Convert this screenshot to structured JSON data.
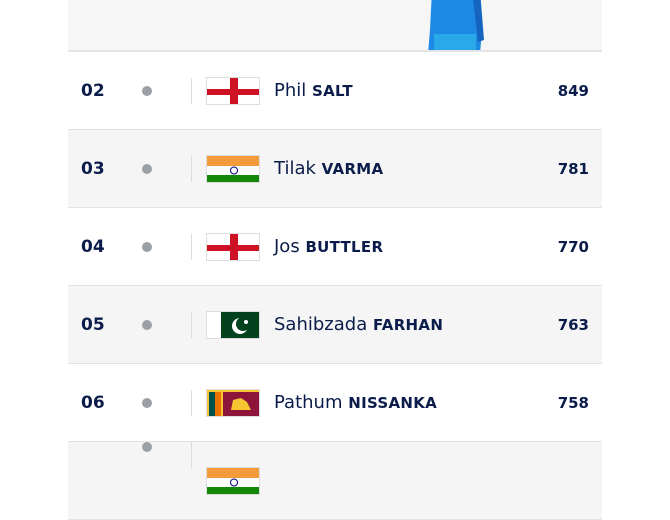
{
  "rankings": [
    {
      "rank": "02",
      "first": "Phil",
      "last": "SALT",
      "flag": "england",
      "rating": "849"
    },
    {
      "rank": "03",
      "first": "Tilak",
      "last": "VARMA",
      "flag": "india",
      "rating": "781"
    },
    {
      "rank": "04",
      "first": "Jos",
      "last": "BUTTLER",
      "flag": "england",
      "rating": "770"
    },
    {
      "rank": "05",
      "first": "Sahibzada",
      "last": "FARHAN",
      "flag": "pakistan",
      "rating": "763"
    },
    {
      "rank": "06",
      "first": "Pathum",
      "last": "NISSANKA",
      "flag": "sri-lanka",
      "rating": "758"
    },
    {
      "rank": "",
      "first": "",
      "last": "",
      "flag": "india",
      "rating": ""
    }
  ],
  "colors": {
    "text": "#0b1c4a",
    "row_alt": "#f5f5f5",
    "dot": "#9aa0a6"
  }
}
